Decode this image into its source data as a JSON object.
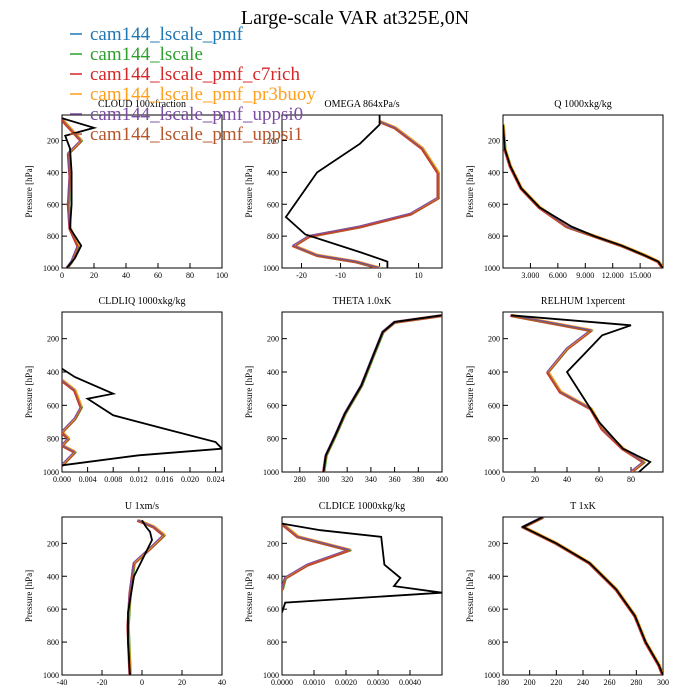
{
  "title": "Large-scale VAR at325E,0N",
  "legend": [
    {
      "name": "cam144_lscale_pmf",
      "color": "#1f77b4"
    },
    {
      "name": "cam144_lscale",
      "color": "#2ca02c"
    },
    {
      "name": "cam144_lscale_pmf_c7rich",
      "color": "#d62728"
    },
    {
      "name": "cam144_lscale_pmf_pr3buoy",
      "color": "#ff9f1c"
    },
    {
      "name": "cam144_lscale_pmf_uppsi0",
      "color": "#7b4ea3"
    },
    {
      "name": "cam144_lscale_pmf_uppsi1",
      "color": "#b5562a"
    }
  ],
  "reference_color": "#000000",
  "chart_data": [
    {
      "type": "line",
      "title": "CLOUD 100xfraction",
      "ylabel": "Pressure [hPa]",
      "xlim": [
        0,
        100
      ],
      "ylim": [
        1000,
        40
      ],
      "xticks": [
        "0",
        "20",
        "40",
        "60",
        "80",
        "100"
      ],
      "xtick_values": [
        0,
        20,
        40,
        60,
        80,
        100
      ],
      "yticks": [
        200,
        400,
        600,
        800,
        1000
      ],
      "reference": [
        [
          0,
          60
        ],
        [
          20,
          120
        ],
        [
          2,
          170
        ],
        [
          5,
          250
        ],
        [
          6,
          400
        ],
        [
          6,
          600
        ],
        [
          5,
          750
        ],
        [
          12,
          860
        ],
        [
          8,
          940
        ],
        [
          3,
          1000
        ]
      ],
      "model": [
        [
          0,
          60
        ],
        [
          2,
          90
        ],
        [
          12,
          200
        ],
        [
          4,
          280
        ],
        [
          5,
          420
        ],
        [
          4,
          600
        ],
        [
          5,
          750
        ],
        [
          10,
          860
        ],
        [
          6,
          960
        ],
        [
          3,
          1000
        ]
      ]
    },
    {
      "type": "line",
      "title": "OMEGA 864xPa/s",
      "ylabel": "Pressure [hPa]",
      "xlim": [
        -25,
        16
      ],
      "ylim": [
        1000,
        40
      ],
      "xticks": [
        "-20",
        "-10",
        "0",
        "10"
      ],
      "xtick_values": [
        -20,
        -10,
        0,
        10
      ],
      "yticks": [
        200,
        400,
        600,
        800,
        1000
      ],
      "reference": [
        [
          0,
          40
        ],
        [
          0,
          100
        ],
        [
          -5,
          220
        ],
        [
          -16,
          400
        ],
        [
          -24,
          680
        ],
        [
          -19,
          790
        ],
        [
          -5,
          900
        ],
        [
          2,
          960
        ],
        [
          2,
          1000
        ]
      ],
      "model": [
        [
          0,
          80
        ],
        [
          4,
          120
        ],
        [
          11,
          250
        ],
        [
          15,
          400
        ],
        [
          15,
          560
        ],
        [
          8,
          660
        ],
        [
          -5,
          740
        ],
        [
          -18,
          800
        ],
        [
          -22,
          860
        ],
        [
          -16,
          920
        ],
        [
          -6,
          960
        ],
        [
          0,
          1000
        ]
      ]
    },
    {
      "type": "line",
      "title": "Q 1000xkg/kg",
      "ylabel": "Pressure [hPa]",
      "xlim": [
        0,
        17.5
      ],
      "ylim": [
        1000,
        40
      ],
      "xticks": [
        "3.000",
        "6.000",
        "9.000",
        "12.000",
        "15.000"
      ],
      "xtick_values": [
        3,
        6,
        9,
        12,
        15
      ],
      "yticks": [
        200,
        400,
        600,
        800,
        1000
      ],
      "reference": [
        [
          0,
          100
        ],
        [
          0.2,
          250
        ],
        [
          0.8,
          360
        ],
        [
          2,
          500
        ],
        [
          4,
          620
        ],
        [
          7.5,
          740
        ],
        [
          10,
          800
        ],
        [
          13,
          860
        ],
        [
          15.5,
          920
        ],
        [
          17,
          960
        ],
        [
          17.5,
          1000
        ]
      ],
      "model": [
        [
          0,
          100
        ],
        [
          0.2,
          250
        ],
        [
          0.8,
          360
        ],
        [
          2,
          500
        ],
        [
          4,
          620
        ],
        [
          7,
          740
        ],
        [
          10,
          800
        ],
        [
          13,
          860
        ],
        [
          15.5,
          920
        ],
        [
          17,
          960
        ],
        [
          17.5,
          1000
        ]
      ]
    },
    {
      "type": "line",
      "title": "CLDLIQ 1000xkg/kg",
      "ylabel": "Pressure [hPa]",
      "xlim": [
        0,
        0.025
      ],
      "ylim": [
        1000,
        40
      ],
      "xticks": [
        "0.000",
        "0.004",
        "0.008",
        "0.012",
        "0.016",
        "0.020",
        "0.024"
      ],
      "xtick_values": [
        0,
        0.004,
        0.008,
        0.012,
        0.016,
        0.02,
        0.024
      ],
      "yticks": [
        200,
        400,
        600,
        800,
        1000
      ],
      "reference": [
        [
          0,
          380
        ],
        [
          0.002,
          430
        ],
        [
          0.008,
          530
        ],
        [
          0.004,
          560
        ],
        [
          0.008,
          660
        ],
        [
          0.016,
          740
        ],
        [
          0.024,
          820
        ],
        [
          0.025,
          860
        ],
        [
          0.012,
          900
        ],
        [
          0,
          960
        ]
      ],
      "model": [
        [
          0,
          450
        ],
        [
          0.002,
          510
        ],
        [
          0.003,
          610
        ],
        [
          0.002,
          680
        ],
        [
          0,
          760
        ],
        [
          0.001,
          800
        ],
        [
          0,
          840
        ],
        [
          0.002,
          880
        ],
        [
          0,
          960
        ]
      ]
    },
    {
      "type": "line",
      "title": "THETA 1.0xK",
      "ylabel": "Pressure [hPa]",
      "xlim": [
        265,
        400
      ],
      "ylim": [
        1000,
        40
      ],
      "xticks": [
        "280",
        "300",
        "320",
        "340",
        "360",
        "380",
        "400"
      ],
      "xtick_values": [
        280,
        300,
        320,
        340,
        360,
        380,
        400
      ],
      "yticks": [
        200,
        400,
        600,
        800,
        1000
      ],
      "reference": [
        [
          400,
          60
        ],
        [
          385,
          75
        ],
        [
          360,
          100
        ],
        [
          350,
          160
        ],
        [
          342,
          300
        ],
        [
          332,
          480
        ],
        [
          318,
          650
        ],
        [
          310,
          780
        ],
        [
          302,
          900
        ],
        [
          300,
          1000
        ]
      ],
      "model": [
        [
          400,
          60
        ],
        [
          385,
          75
        ],
        [
          360,
          100
        ],
        [
          350,
          160
        ],
        [
          342,
          300
        ],
        [
          332,
          480
        ],
        [
          318,
          650
        ],
        [
          310,
          780
        ],
        [
          302,
          900
        ],
        [
          300,
          1000
        ]
      ]
    },
    {
      "type": "line",
      "title": "RELHUM 1xpercent",
      "ylabel": "Pressure [hPa]",
      "xlim": [
        0,
        100
      ],
      "ylim": [
        1000,
        40
      ],
      "xticks": [
        "0",
        "20",
        "40",
        "60",
        "80"
      ],
      "xtick_values": [
        0,
        20,
        40,
        60,
        80
      ],
      "yticks": [
        200,
        400,
        600,
        800,
        1000
      ],
      "reference": [
        [
          5,
          60
        ],
        [
          80,
          120
        ],
        [
          62,
          180
        ],
        [
          52,
          280
        ],
        [
          40,
          400
        ],
        [
          50,
          550
        ],
        [
          60,
          700
        ],
        [
          75,
          860
        ],
        [
          92,
          940
        ],
        [
          85,
          1000
        ]
      ],
      "model": [
        [
          5,
          60
        ],
        [
          55,
          150
        ],
        [
          40,
          260
        ],
        [
          28,
          400
        ],
        [
          36,
          520
        ],
        [
          55,
          620
        ],
        [
          62,
          740
        ],
        [
          75,
          860
        ],
        [
          88,
          940
        ],
        [
          80,
          1000
        ]
      ]
    },
    {
      "type": "line",
      "title": "U 1xm/s",
      "ylabel": "Pressure [hPa]",
      "xlim": [
        -40,
        40
      ],
      "ylim": [
        1000,
        40
      ],
      "xticks": [
        "-40",
        "-20",
        "0",
        "20",
        "40"
      ],
      "xtick_values": [
        -40,
        -20,
        0,
        20,
        40
      ],
      "yticks": [
        200,
        400,
        600,
        800,
        1000
      ],
      "reference": [
        [
          0,
          60
        ],
        [
          2,
          100
        ],
        [
          4,
          130
        ],
        [
          5,
          180
        ],
        [
          -4,
          400
        ],
        [
          -7,
          620
        ],
        [
          -7,
          800
        ],
        [
          -6,
          1000
        ]
      ],
      "model": [
        [
          -2,
          60
        ],
        [
          6,
          100
        ],
        [
          11,
          150
        ],
        [
          5,
          220
        ],
        [
          -4,
          320
        ],
        [
          -6,
          500
        ],
        [
          -7,
          700
        ],
        [
          -6,
          1000
        ]
      ]
    },
    {
      "type": "line",
      "title": "CLDICE 1000xkg/kg",
      "ylabel": "Pressure [hPa]",
      "xlim": [
        0,
        0.005
      ],
      "ylim": [
        1000,
        40
      ],
      "xticks": [
        "0.0000",
        "0.0010",
        "0.0020",
        "0.0030",
        "0.0040"
      ],
      "xtick_values": [
        0,
        0.001,
        0.002,
        0.003,
        0.004
      ],
      "yticks": [
        200,
        400,
        600,
        800,
        1000
      ],
      "reference": [
        [
          0,
          80
        ],
        [
          0.0012,
          120
        ],
        [
          0.0031,
          160
        ],
        [
          0.0032,
          330
        ],
        [
          0.0037,
          410
        ],
        [
          0.0035,
          460
        ],
        [
          0.005,
          500
        ],
        [
          0.0001,
          560
        ],
        [
          0,
          620
        ]
      ],
      "model": [
        [
          0,
          80
        ],
        [
          0.0005,
          160
        ],
        [
          0.0021,
          240
        ],
        [
          0.0008,
          330
        ],
        [
          0.0001,
          410
        ],
        [
          0,
          480
        ]
      ]
    },
    {
      "type": "line",
      "title": "T 1xK",
      "ylabel": "Pressure [hPa]",
      "xlim": [
        180,
        300
      ],
      "ylim": [
        1000,
        40
      ],
      "xticks": [
        "180",
        "200",
        "220",
        "240",
        "260",
        "280",
        "300"
      ],
      "xtick_values": [
        180,
        200,
        220,
        240,
        260,
        280,
        300
      ],
      "yticks": [
        200,
        400,
        600,
        800,
        1000
      ],
      "reference": [
        [
          210,
          40
        ],
        [
          195,
          100
        ],
        [
          220,
          200
        ],
        [
          245,
          320
        ],
        [
          265,
          480
        ],
        [
          279,
          640
        ],
        [
          287,
          800
        ],
        [
          297,
          940
        ],
        [
          300,
          1000
        ]
      ],
      "model": [
        [
          210,
          40
        ],
        [
          195,
          100
        ],
        [
          220,
          200
        ],
        [
          245,
          320
        ],
        [
          265,
          480
        ],
        [
          279,
          640
        ],
        [
          287,
          800
        ],
        [
          297,
          940
        ],
        [
          300,
          1000
        ]
      ]
    }
  ]
}
